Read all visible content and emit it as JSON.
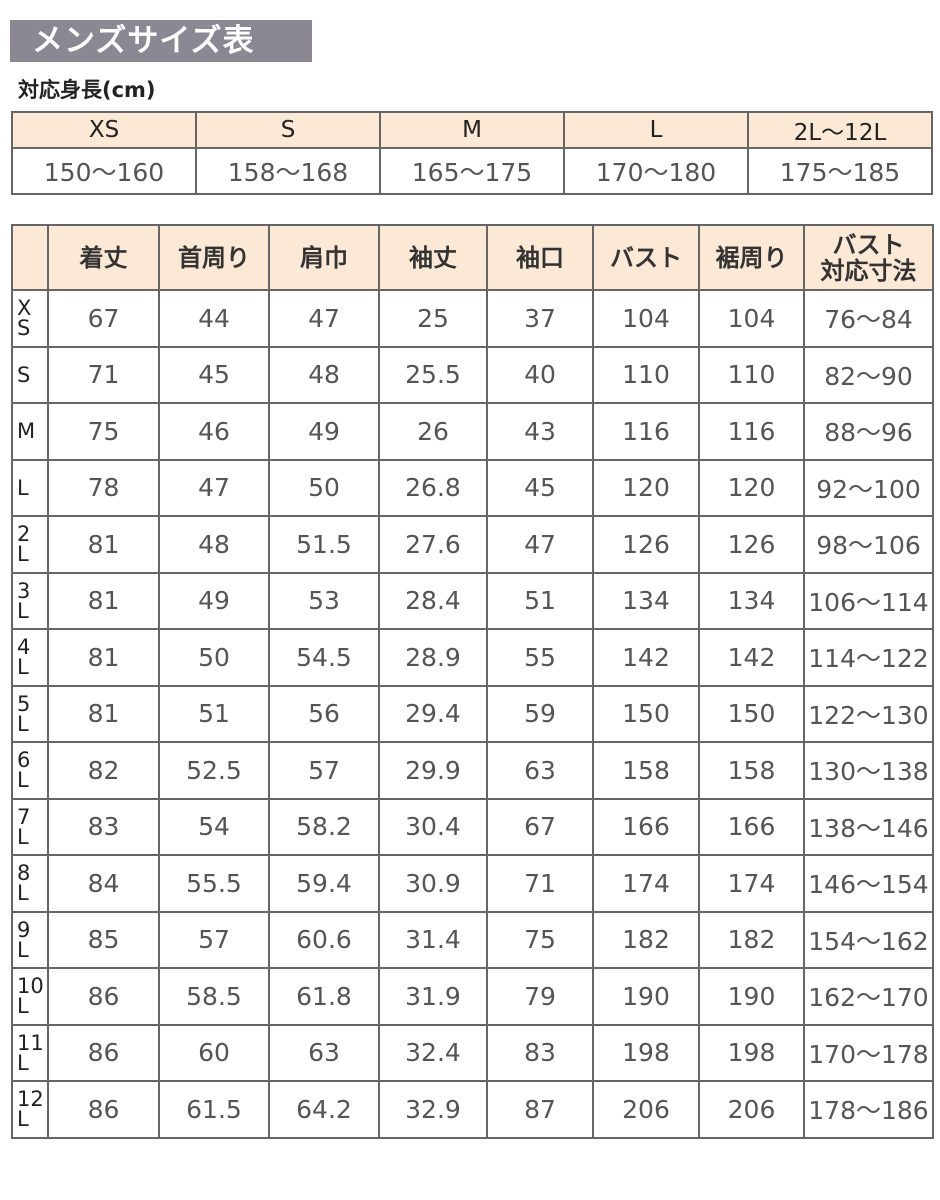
{
  "title": "メンズサイズ表",
  "height_label": "対応身長(cm)",
  "height_table": {
    "sizes": [
      "XS",
      "S",
      "M",
      "L",
      "2L〜12L"
    ],
    "ranges": [
      "150〜160",
      "158〜168",
      "165〜175",
      "170〜180",
      "175〜185"
    ]
  },
  "size_table": {
    "headers": [
      "",
      "着丈",
      "首周り",
      "肩巾",
      "袖丈",
      "袖口",
      "バスト",
      "裾周り",
      "バスト\n対応寸法"
    ],
    "rows": [
      [
        "X\nS",
        "67",
        "44",
        "47",
        "25",
        "37",
        "104",
        "104",
        "76〜84"
      ],
      [
        "S",
        "71",
        "45",
        "48",
        "25.5",
        "40",
        "110",
        "110",
        "82〜90"
      ],
      [
        "M",
        "75",
        "46",
        "49",
        "26",
        "43",
        "116",
        "116",
        "88〜96"
      ],
      [
        "L",
        "78",
        "47",
        "50",
        "26.8",
        "45",
        "120",
        "120",
        "92〜100"
      ],
      [
        "2\nL",
        "81",
        "48",
        "51.5",
        "27.6",
        "47",
        "126",
        "126",
        "98〜106"
      ],
      [
        "3\nL",
        "81",
        "49",
        "53",
        "28.4",
        "51",
        "134",
        "134",
        "106〜114"
      ],
      [
        "4\nL",
        "81",
        "50",
        "54.5",
        "28.9",
        "55",
        "142",
        "142",
        "114〜122"
      ],
      [
        "5\nL",
        "81",
        "51",
        "56",
        "29.4",
        "59",
        "150",
        "150",
        "122〜130"
      ],
      [
        "6\nL",
        "82",
        "52.5",
        "57",
        "29.9",
        "63",
        "158",
        "158",
        "130〜138"
      ],
      [
        "7\nL",
        "83",
        "54",
        "58.2",
        "30.4",
        "67",
        "166",
        "166",
        "138〜146"
      ],
      [
        "8\nL",
        "84",
        "55.5",
        "59.4",
        "30.9",
        "71",
        "174",
        "174",
        "146〜154"
      ],
      [
        "9\nL",
        "85",
        "57",
        "60.6",
        "31.4",
        "75",
        "182",
        "182",
        "154〜162"
      ],
      [
        "10\nL",
        "86",
        "58.5",
        "61.8",
        "31.9",
        "79",
        "190",
        "190",
        "162〜170"
      ],
      [
        "11\nL",
        "86",
        "60",
        "63",
        "32.4",
        "83",
        "198",
        "198",
        "170〜178"
      ],
      [
        "12\nL",
        "86",
        "61.5",
        "64.2",
        "32.9",
        "87",
        "206",
        "206",
        "178〜186"
      ]
    ]
  },
  "colors": {
    "title_bg": "#8b8893",
    "header_bg": "#fbe8d5",
    "border": "#666666"
  }
}
